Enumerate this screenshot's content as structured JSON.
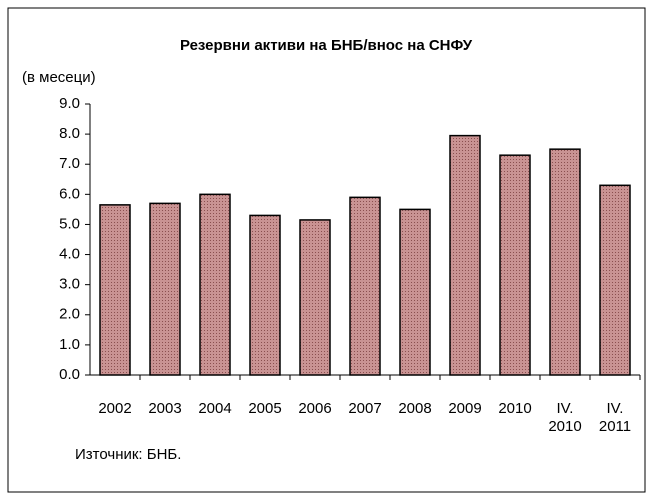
{
  "chart_data": {
    "type": "bar",
    "title": "Резервни активи на БНБ/внос на СНФУ",
    "unit_label": "(в месеци)",
    "source": "Източник: БНБ.",
    "categories": [
      "2002",
      "2003",
      "2004",
      "2005",
      "2006",
      "2007",
      "2008",
      "2009",
      "2010",
      "IV. 2010",
      "IV. 2011"
    ],
    "values": [
      5.65,
      5.7,
      6.0,
      5.3,
      5.15,
      5.9,
      5.5,
      7.95,
      7.3,
      7.5,
      6.3
    ],
    "color": "#c99393",
    "ylim": [
      0,
      9
    ],
    "yticks": [
      {
        "value": 0,
        "label": "0.0"
      },
      {
        "value": 1,
        "label": "1.0"
      },
      {
        "value": 2,
        "label": "2.0"
      },
      {
        "value": 3,
        "label": "3.0"
      },
      {
        "value": 4,
        "label": "4.0"
      },
      {
        "value": 5,
        "label": "5.0"
      },
      {
        "value": 6,
        "label": "6.0"
      },
      {
        "value": 7,
        "label": "7.0"
      },
      {
        "value": 8,
        "label": "8.0"
      },
      {
        "value": 9,
        "label": "9.0"
      }
    ],
    "grid": false
  }
}
